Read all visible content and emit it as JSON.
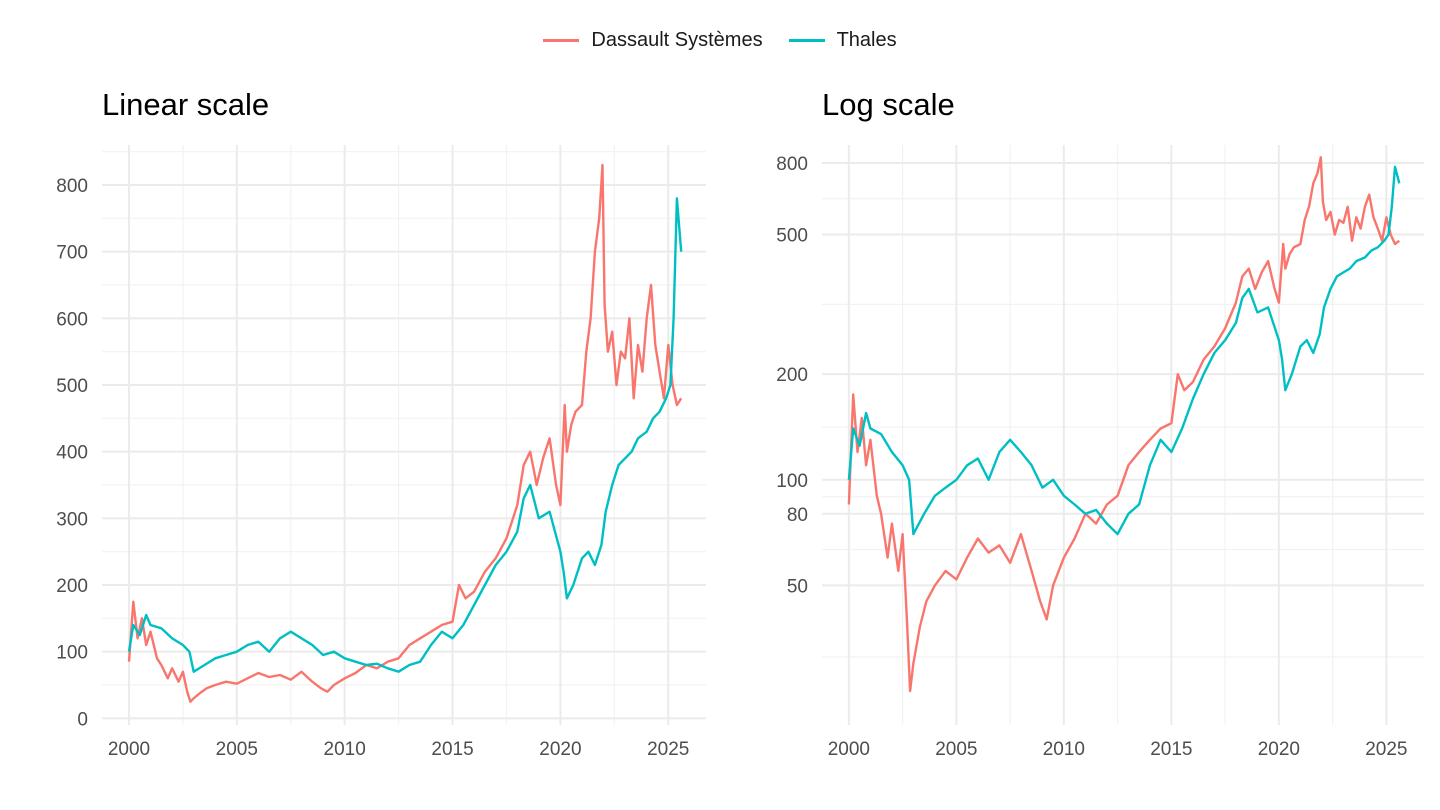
{
  "legend": {
    "items": [
      {
        "label": "Dassault Systèmes",
        "color": "#F8766D"
      },
      {
        "label": "Thales",
        "color": "#00BFC4"
      }
    ]
  },
  "chart_data": [
    {
      "type": "line",
      "title": "Linear scale",
      "xlabel": "",
      "ylabel": "",
      "x_ticks": [
        2000,
        2005,
        2010,
        2015,
        2020,
        2025
      ],
      "y_ticks": [
        0,
        100,
        200,
        300,
        400,
        500,
        600,
        700,
        800
      ],
      "ylim": [
        -10,
        860
      ],
      "xlim": [
        1998.75,
        2026.75
      ],
      "y_scale": "linear",
      "grid": true,
      "series": [
        {
          "name": "Dassault Systèmes",
          "color": "#F8766D",
          "x": [
            2000.0,
            2000.2,
            2000.4,
            2000.6,
            2000.8,
            2001.0,
            2001.3,
            2001.5,
            2001.8,
            2002.0,
            2002.3,
            2002.5,
            2002.7,
            2002.85,
            2003.0,
            2003.3,
            2003.6,
            2004.0,
            2004.5,
            2005.0,
            2005.5,
            2006.0,
            2006.5,
            2007.0,
            2007.5,
            2008.0,
            2008.5,
            2008.9,
            2009.2,
            2009.5,
            2010.0,
            2010.5,
            2011.0,
            2011.5,
            2012.0,
            2012.5,
            2013.0,
            2013.5,
            2014.0,
            2014.5,
            2015.0,
            2015.3,
            2015.6,
            2016.0,
            2016.5,
            2017.0,
            2017.5,
            2018.0,
            2018.3,
            2018.6,
            2018.9,
            2019.2,
            2019.5,
            2019.8,
            2020.0,
            2020.2,
            2020.3,
            2020.5,
            2020.7,
            2021.0,
            2021.2,
            2021.4,
            2021.6,
            2021.8,
            2021.95,
            2022.05,
            2022.2,
            2022.4,
            2022.6,
            2022.8,
            2023.0,
            2023.2,
            2023.4,
            2023.6,
            2023.8,
            2024.0,
            2024.2,
            2024.4,
            2024.6,
            2024.8,
            2025.0,
            2025.2,
            2025.4,
            2025.6
          ],
          "y": [
            85,
            175,
            120,
            150,
            110,
            130,
            90,
            80,
            60,
            75,
            55,
            70,
            40,
            25,
            30,
            38,
            45,
            50,
            55,
            52,
            60,
            68,
            62,
            65,
            58,
            70,
            55,
            45,
            40,
            50,
            60,
            68,
            80,
            75,
            85,
            90,
            110,
            120,
            130,
            140,
            145,
            200,
            180,
            190,
            220,
            240,
            270,
            320,
            380,
            400,
            350,
            390,
            420,
            350,
            320,
            470,
            400,
            440,
            460,
            470,
            550,
            600,
            700,
            750,
            830,
            620,
            550,
            580,
            500,
            550,
            540,
            600,
            480,
            560,
            520,
            600,
            650,
            560,
            520,
            480,
            560,
            500,
            470,
            480
          ]
        },
        {
          "name": "Thales",
          "color": "#00BFC4",
          "x": [
            2000.0,
            2000.2,
            2000.5,
            2000.8,
            2001.0,
            2001.5,
            2002.0,
            2002.5,
            2002.8,
            2003.0,
            2003.5,
            2004.0,
            2004.5,
            2005.0,
            2005.5,
            2006.0,
            2006.5,
            2007.0,
            2007.5,
            2008.0,
            2008.5,
            2009.0,
            2009.5,
            2010.0,
            2010.5,
            2011.0,
            2011.5,
            2012.0,
            2012.5,
            2013.0,
            2013.5,
            2014.0,
            2014.5,
            2015.0,
            2015.5,
            2016.0,
            2016.5,
            2017.0,
            2017.5,
            2018.0,
            2018.3,
            2018.6,
            2019.0,
            2019.5,
            2020.0,
            2020.15,
            2020.3,
            2020.6,
            2021.0,
            2021.3,
            2021.6,
            2021.9,
            2022.1,
            2022.4,
            2022.7,
            2023.0,
            2023.3,
            2023.6,
            2024.0,
            2024.3,
            2024.6,
            2024.9,
            2025.1,
            2025.25,
            2025.4,
            2025.6
          ],
          "y": [
            100,
            140,
            125,
            155,
            140,
            135,
            120,
            110,
            100,
            70,
            80,
            90,
            95,
            100,
            110,
            115,
            100,
            120,
            130,
            120,
            110,
            95,
            100,
            90,
            85,
            80,
            82,
            75,
            70,
            80,
            85,
            110,
            130,
            120,
            140,
            170,
            200,
            230,
            250,
            280,
            330,
            350,
            300,
            310,
            250,
            220,
            180,
            200,
            240,
            250,
            230,
            260,
            310,
            350,
            380,
            390,
            400,
            420,
            430,
            450,
            460,
            480,
            500,
            600,
            780,
            700
          ]
        }
      ]
    },
    {
      "type": "line",
      "title": "Log scale",
      "xlabel": "",
      "ylabel": "",
      "x_ticks": [
        2000,
        2005,
        2010,
        2015,
        2020,
        2025
      ],
      "y_ticks": [
        50,
        80,
        100,
        200,
        500,
        800
      ],
      "ylim": [
        20,
        900
      ],
      "xlim": [
        1998.75,
        2026.75
      ],
      "y_scale": "log",
      "grid": true,
      "series": [
        {
          "name": "Dassault Systèmes",
          "color": "#F8766D",
          "x": [
            2000.0,
            2000.2,
            2000.4,
            2000.6,
            2000.8,
            2001.0,
            2001.3,
            2001.5,
            2001.8,
            2002.0,
            2002.3,
            2002.5,
            2002.7,
            2002.85,
            2003.0,
            2003.3,
            2003.6,
            2004.0,
            2004.5,
            2005.0,
            2005.5,
            2006.0,
            2006.5,
            2007.0,
            2007.5,
            2008.0,
            2008.5,
            2008.9,
            2009.2,
            2009.5,
            2010.0,
            2010.5,
            2011.0,
            2011.5,
            2012.0,
            2012.5,
            2013.0,
            2013.5,
            2014.0,
            2014.5,
            2015.0,
            2015.3,
            2015.6,
            2016.0,
            2016.5,
            2017.0,
            2017.5,
            2018.0,
            2018.3,
            2018.6,
            2018.9,
            2019.2,
            2019.5,
            2019.8,
            2020.0,
            2020.2,
            2020.3,
            2020.5,
            2020.7,
            2021.0,
            2021.2,
            2021.4,
            2021.6,
            2021.8,
            2021.95,
            2022.05,
            2022.2,
            2022.4,
            2022.6,
            2022.8,
            2023.0,
            2023.2,
            2023.4,
            2023.6,
            2023.8,
            2024.0,
            2024.2,
            2024.4,
            2024.6,
            2024.8,
            2025.0,
            2025.2,
            2025.4,
            2025.6
          ],
          "y": [
            85,
            175,
            120,
            150,
            110,
            130,
            90,
            80,
            60,
            75,
            55,
            70,
            40,
            25,
            30,
            38,
            45,
            50,
            55,
            52,
            60,
            68,
            62,
            65,
            58,
            70,
            55,
            45,
            40,
            50,
            60,
            68,
            80,
            75,
            85,
            90,
            110,
            120,
            130,
            140,
            145,
            200,
            180,
            190,
            220,
            240,
            270,
            320,
            380,
            400,
            350,
            390,
            420,
            350,
            320,
            470,
            400,
            440,
            460,
            470,
            550,
            600,
            700,
            750,
            830,
            620,
            550,
            580,
            500,
            550,
            540,
            600,
            480,
            560,
            520,
            600,
            650,
            560,
            520,
            480,
            560,
            500,
            470,
            480
          ]
        },
        {
          "name": "Thales",
          "color": "#00BFC4",
          "x": [
            2000.0,
            2000.2,
            2000.5,
            2000.8,
            2001.0,
            2001.5,
            2002.0,
            2002.5,
            2002.8,
            2003.0,
            2003.5,
            2004.0,
            2004.5,
            2005.0,
            2005.5,
            2006.0,
            2006.5,
            2007.0,
            2007.5,
            2008.0,
            2008.5,
            2009.0,
            2009.5,
            2010.0,
            2010.5,
            2011.0,
            2011.5,
            2012.0,
            2012.5,
            2013.0,
            2013.5,
            2014.0,
            2014.5,
            2015.0,
            2015.5,
            2016.0,
            2016.5,
            2017.0,
            2017.5,
            2018.0,
            2018.3,
            2018.6,
            2019.0,
            2019.5,
            2020.0,
            2020.15,
            2020.3,
            2020.6,
            2021.0,
            2021.3,
            2021.6,
            2021.9,
            2022.1,
            2022.4,
            2022.7,
            2023.0,
            2023.3,
            2023.6,
            2024.0,
            2024.3,
            2024.6,
            2024.9,
            2025.1,
            2025.25,
            2025.4,
            2025.6
          ],
          "y": [
            100,
            140,
            125,
            155,
            140,
            135,
            120,
            110,
            100,
            70,
            80,
            90,
            95,
            100,
            110,
            115,
            100,
            120,
            130,
            120,
            110,
            95,
            100,
            90,
            85,
            80,
            82,
            75,
            70,
            80,
            85,
            110,
            130,
            120,
            140,
            170,
            200,
            230,
            250,
            280,
            330,
            350,
            300,
            310,
            250,
            220,
            180,
            200,
            240,
            250,
            230,
            260,
            310,
            350,
            380,
            390,
            400,
            420,
            430,
            450,
            460,
            480,
            500,
            600,
            780,
            700
          ]
        }
      ]
    }
  ]
}
